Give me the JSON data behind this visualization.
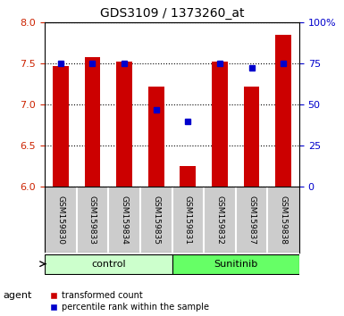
{
  "title": "GDS3109 / 1373260_at",
  "samples": [
    "GSM159830",
    "GSM159833",
    "GSM159834",
    "GSM159835",
    "GSM159831",
    "GSM159832",
    "GSM159837",
    "GSM159838"
  ],
  "red_values": [
    7.47,
    7.57,
    7.52,
    7.22,
    6.25,
    7.52,
    7.22,
    7.85
  ],
  "blue_values": [
    75,
    75,
    75,
    47,
    40,
    75,
    72,
    75
  ],
  "groups": [
    {
      "label": "control",
      "indices": [
        0,
        1,
        2,
        3
      ],
      "color": "#ccffcc"
    },
    {
      "label": "Sunitinib",
      "indices": [
        4,
        5,
        6,
        7
      ],
      "color": "#66ff66"
    }
  ],
  "agent_label": "agent",
  "ylim_left": [
    6.0,
    8.0
  ],
  "ylim_right": [
    0,
    100
  ],
  "yticks_left": [
    6.0,
    6.5,
    7.0,
    7.5,
    8.0
  ],
  "yticks_right": [
    0,
    25,
    50,
    75,
    100
  ],
  "ytick_labels_right": [
    "0",
    "25",
    "50",
    "75",
    "100%"
  ],
  "bar_color": "#cc0000",
  "dot_color": "#0000cc",
  "bar_width": 0.5,
  "grid_color": "#000000",
  "bg_color": "#ffffff",
  "plot_bg": "#ffffff",
  "tick_label_color_left": "#cc2200",
  "tick_label_color_right": "#0000cc",
  "legend_red_label": "transformed count",
  "legend_blue_label": "percentile rank within the sample",
  "sample_box_color": "#cccccc"
}
